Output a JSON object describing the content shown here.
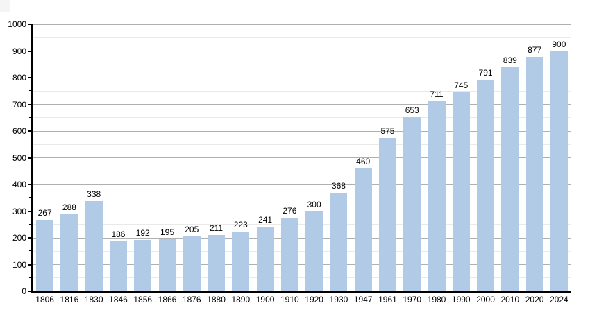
{
  "chart_data": {
    "type": "bar",
    "categories": [
      "1806",
      "1816",
      "1830",
      "1846",
      "1856",
      "1866",
      "1876",
      "1880",
      "1890",
      "1900",
      "1910",
      "1920",
      "1930",
      "1947",
      "1961",
      "1970",
      "1980",
      "1990",
      "2000",
      "2010",
      "2020",
      "2024"
    ],
    "values": [
      267,
      288,
      338,
      186,
      192,
      195,
      205,
      211,
      223,
      241,
      276,
      300,
      368,
      460,
      575,
      653,
      711,
      745,
      791,
      839,
      877,
      900
    ],
    "title": "",
    "xlabel": "",
    "ylabel": "",
    "ylim": [
      0,
      1000
    ],
    "y_major_step": 100,
    "y_minor_step": 50,
    "y_tick_labels": [
      "0",
      "100",
      "200",
      "300",
      "400",
      "500",
      "600",
      "700",
      "800",
      "900",
      "1000"
    ],
    "grid": true,
    "legend_position": "none",
    "bar_color": "#b1cbe7",
    "axis_color": "#000000",
    "major_grid_color": "#b0b0b0",
    "minor_grid_color": "#e9e9e9",
    "text_color": "#000000",
    "background_color": "#ffffff"
  }
}
